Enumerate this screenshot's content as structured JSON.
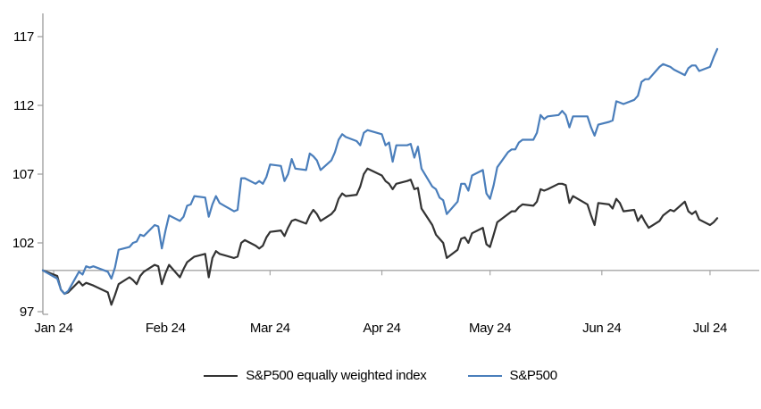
{
  "chart_data": {
    "type": "line",
    "title": "",
    "xlabel": "",
    "ylabel": "",
    "legend_position": "bottom-center",
    "grid": false,
    "baseline_value": 100,
    "y_axis": {
      "ticks": [
        97,
        102,
        107,
        112,
        117
      ],
      "min": 97,
      "max": 118.6
    },
    "x_axis": {
      "labels": [
        "Jan 24",
        "Feb 24",
        "Mar 24",
        "Apr 24",
        "May 24",
        "Jun 24",
        "Jul 24"
      ],
      "label_offsets": [
        3,
        34,
        63,
        94,
        124,
        155,
        185
      ],
      "domain_days": 187
    },
    "series": [
      {
        "name": "S&P500 equally weighted index",
        "color": "#333333",
        "points": [
          [
            0,
            100
          ],
          [
            4,
            99.6
          ],
          [
            5,
            98.6
          ],
          [
            6,
            98.3
          ],
          [
            7,
            98.4
          ],
          [
            10,
            99.2
          ],
          [
            11,
            98.9
          ],
          [
            12,
            99.1
          ],
          [
            13,
            99
          ],
          [
            14,
            98.9
          ],
          [
            18,
            98.4
          ],
          [
            19,
            97.5
          ],
          [
            20,
            98.2
          ],
          [
            21,
            99
          ],
          [
            24,
            99.5
          ],
          [
            25,
            99.3
          ],
          [
            26,
            99
          ],
          [
            27,
            99.6
          ],
          [
            28,
            99.9
          ],
          [
            31,
            100.4
          ],
          [
            32,
            100.3
          ],
          [
            33,
            99
          ],
          [
            34,
            99.8
          ],
          [
            35,
            100.4
          ],
          [
            38,
            99.5
          ],
          [
            39,
            100.1
          ],
          [
            40,
            100.6
          ],
          [
            41,
            100.8
          ],
          [
            42,
            101
          ],
          [
            45,
            101.2
          ],
          [
            46,
            99.5
          ],
          [
            47,
            100.9
          ],
          [
            48,
            101.4
          ],
          [
            49,
            101.2
          ],
          [
            53,
            100.9
          ],
          [
            54,
            101
          ],
          [
            55,
            102
          ],
          [
            56,
            102.2
          ],
          [
            59,
            101.8
          ],
          [
            60,
            101.6
          ],
          [
            61,
            101.8
          ],
          [
            62,
            102.4
          ],
          [
            63,
            102.8
          ],
          [
            66,
            102.9
          ],
          [
            67,
            102.5
          ],
          [
            68,
            103.1
          ],
          [
            69,
            103.6
          ],
          [
            70,
            103.7
          ],
          [
            73,
            103.4
          ],
          [
            74,
            104
          ],
          [
            75,
            104.4
          ],
          [
            76,
            104.1
          ],
          [
            77,
            103.6
          ],
          [
            80,
            104.1
          ],
          [
            81,
            104.4
          ],
          [
            82,
            105.2
          ],
          [
            83,
            105.6
          ],
          [
            84,
            105.4
          ],
          [
            87,
            105.5
          ],
          [
            88,
            106.1
          ],
          [
            89,
            107
          ],
          [
            90,
            107.4
          ],
          [
            94,
            106.9
          ],
          [
            95,
            106.5
          ],
          [
            96,
            106.3
          ],
          [
            97,
            105.9
          ],
          [
            98,
            106.3
          ],
          [
            101,
            106.5
          ],
          [
            102,
            106.6
          ],
          [
            103,
            105.9
          ],
          [
            104,
            106
          ],
          [
            105,
            104.5
          ],
          [
            108,
            103.3
          ],
          [
            109,
            102.6
          ],
          [
            110,
            102.3
          ],
          [
            111,
            102
          ],
          [
            112,
            100.9
          ],
          [
            115,
            101.5
          ],
          [
            116,
            102.3
          ],
          [
            117,
            102.4
          ],
          [
            118,
            102
          ],
          [
            119,
            102.7
          ],
          [
            122,
            103.1
          ],
          [
            123,
            101.9
          ],
          [
            124,
            101.7
          ],
          [
            125,
            102.6
          ],
          [
            126,
            103.5
          ],
          [
            129,
            104.1
          ],
          [
            130,
            104.3
          ],
          [
            131,
            104.3
          ],
          [
            132,
            104.6
          ],
          [
            133,
            104.8
          ],
          [
            136,
            104.7
          ],
          [
            137,
            105
          ],
          [
            138,
            105.9
          ],
          [
            139,
            105.8
          ],
          [
            140,
            105.9
          ],
          [
            143,
            106.3
          ],
          [
            144,
            106.3
          ],
          [
            145,
            106.2
          ],
          [
            146,
            104.9
          ],
          [
            147,
            105.4
          ],
          [
            151,
            104.8
          ],
          [
            152,
            104
          ],
          [
            153,
            103.3
          ],
          [
            154,
            104.9
          ],
          [
            157,
            104.8
          ],
          [
            158,
            104.5
          ],
          [
            159,
            105.2
          ],
          [
            160,
            104.9
          ],
          [
            161,
            104.3
          ],
          [
            164,
            104.4
          ],
          [
            165,
            103.6
          ],
          [
            166,
            104
          ],
          [
            167,
            103.5
          ],
          [
            168,
            103.1
          ],
          [
            171,
            103.6
          ],
          [
            172,
            104
          ],
          [
            174,
            104.4
          ],
          [
            175,
            104.3
          ],
          [
            178,
            105
          ],
          [
            179,
            104.3
          ],
          [
            180,
            104.1
          ],
          [
            181,
            104.3
          ],
          [
            182,
            103.7
          ],
          [
            185,
            103.3
          ],
          [
            186,
            103.5
          ],
          [
            187,
            103.8
          ]
        ]
      },
      {
        "name": "S&P500",
        "color": "#4a7ebb",
        "points": [
          [
            0,
            100
          ],
          [
            4,
            99.4
          ],
          [
            5,
            98.6
          ],
          [
            6,
            98.3
          ],
          [
            7,
            98.5
          ],
          [
            10,
            99.9
          ],
          [
            11,
            99.7
          ],
          [
            12,
            100.3
          ],
          [
            13,
            100.2
          ],
          [
            14,
            100.3
          ],
          [
            18,
            99.9
          ],
          [
            19,
            99.4
          ],
          [
            20,
            100.2
          ],
          [
            21,
            101.5
          ],
          [
            24,
            101.7
          ],
          [
            25,
            102
          ],
          [
            26,
            102.1
          ],
          [
            27,
            102.6
          ],
          [
            28,
            102.5
          ],
          [
            31,
            103.3
          ],
          [
            32,
            103.2
          ],
          [
            33,
            101.6
          ],
          [
            34,
            102.9
          ],
          [
            35,
            104
          ],
          [
            38,
            103.6
          ],
          [
            39,
            103.9
          ],
          [
            40,
            104.7
          ],
          [
            41,
            104.8
          ],
          [
            42,
            105.4
          ],
          [
            45,
            105.3
          ],
          [
            46,
            103.9
          ],
          [
            47,
            104.8
          ],
          [
            48,
            105.4
          ],
          [
            49,
            104.9
          ],
          [
            53,
            104.3
          ],
          [
            54,
            104.4
          ],
          [
            55,
            106.7
          ],
          [
            56,
            106.7
          ],
          [
            59,
            106.3
          ],
          [
            60,
            106.5
          ],
          [
            61,
            106.3
          ],
          [
            62,
            106.8
          ],
          [
            63,
            107.7
          ],
          [
            66,
            107.6
          ],
          [
            67,
            106.5
          ],
          [
            68,
            107
          ],
          [
            69,
            108.1
          ],
          [
            70,
            107.4
          ],
          [
            73,
            107.3
          ],
          [
            74,
            108.5
          ],
          [
            75,
            108.3
          ],
          [
            76,
            108
          ],
          [
            77,
            107.3
          ],
          [
            80,
            108
          ],
          [
            81,
            108.6
          ],
          [
            82,
            109.5
          ],
          [
            83,
            109.9
          ],
          [
            84,
            109.7
          ],
          [
            87,
            109.4
          ],
          [
            88,
            109.1
          ],
          [
            89,
            110
          ],
          [
            90,
            110.2
          ],
          [
            94,
            109.9
          ],
          [
            95,
            109.1
          ],
          [
            96,
            109.3
          ],
          [
            97,
            107.9
          ],
          [
            98,
            109.1
          ],
          [
            101,
            109.1
          ],
          [
            102,
            109.2
          ],
          [
            103,
            108.2
          ],
          [
            104,
            109
          ],
          [
            105,
            107.4
          ],
          [
            108,
            106.1
          ],
          [
            109,
            105.9
          ],
          [
            110,
            105.3
          ],
          [
            111,
            105.1
          ],
          [
            112,
            104.1
          ],
          [
            115,
            105
          ],
          [
            116,
            106.3
          ],
          [
            117,
            106.3
          ],
          [
            118,
            105.8
          ],
          [
            119,
            106.9
          ],
          [
            122,
            107.3
          ],
          [
            123,
            105.6
          ],
          [
            124,
            105.2
          ],
          [
            125,
            106.2
          ],
          [
            126,
            107.5
          ],
          [
            129,
            108.6
          ],
          [
            130,
            108.8
          ],
          [
            131,
            108.8
          ],
          [
            132,
            109.3
          ],
          [
            133,
            109.5
          ],
          [
            136,
            109.5
          ],
          [
            137,
            110
          ],
          [
            138,
            111.3
          ],
          [
            139,
            111
          ],
          [
            140,
            111.2
          ],
          [
            143,
            111.3
          ],
          [
            144,
            111.6
          ],
          [
            145,
            111.3
          ],
          [
            146,
            110.4
          ],
          [
            147,
            111.2
          ],
          [
            151,
            111.2
          ],
          [
            152,
            110.4
          ],
          [
            153,
            109.8
          ],
          [
            154,
            110.6
          ],
          [
            157,
            110.8
          ],
          [
            158,
            110.9
          ],
          [
            159,
            112.3
          ],
          [
            160,
            112.2
          ],
          [
            161,
            112.1
          ],
          [
            164,
            112.4
          ],
          [
            165,
            112.7
          ],
          [
            166,
            113.7
          ],
          [
            167,
            113.9
          ],
          [
            168,
            113.9
          ],
          [
            171,
            114.8
          ],
          [
            172,
            115
          ],
          [
            174,
            114.8
          ],
          [
            175,
            114.6
          ],
          [
            178,
            114.2
          ],
          [
            179,
            114.7
          ],
          [
            180,
            114.9
          ],
          [
            181,
            114.9
          ],
          [
            182,
            114.5
          ],
          [
            185,
            114.8
          ],
          [
            186,
            115.5
          ],
          [
            187,
            116.1
          ]
        ]
      }
    ]
  },
  "colors": {
    "background": "#ffffff",
    "axis": "#9a9a9a",
    "baseline": "#a6a6a6",
    "text": "#000000",
    "series_equal_weight": "#333333",
    "series_sp500": "#4a7ebb"
  }
}
